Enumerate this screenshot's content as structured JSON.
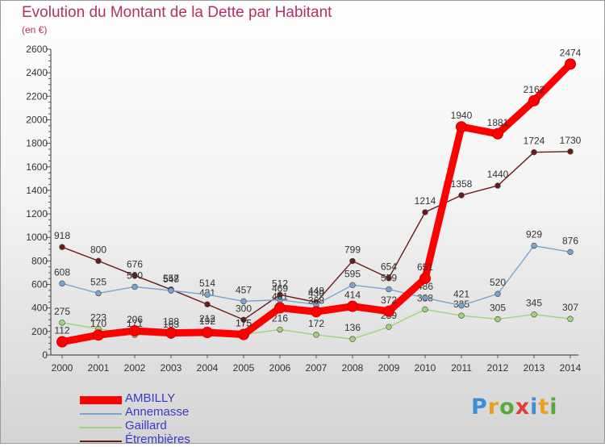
{
  "title": "Evolution du Montant de la Dette par Habitant",
  "subtitle": "(en €)",
  "logo": {
    "text": "Proxiti",
    "colors": [
      "#3b8fd9",
      "#e8a11c",
      "#5aa83c",
      "#d9423b",
      "#3b8fd9",
      "#e8a11c",
      "#5aa83c"
    ]
  },
  "chart_data": {
    "type": "line",
    "x": [
      "2000",
      "2001",
      "2002",
      "2003",
      "2004",
      "2005",
      "2006",
      "2007",
      "2008",
      "2009",
      "2010",
      "2011",
      "2012",
      "2013",
      "2014"
    ],
    "ylim": [
      0,
      2600
    ],
    "yticks": [
      "0",
      "200",
      "400",
      "600",
      "800",
      "1000",
      "1200",
      "1400",
      "1600",
      "1800",
      "2000",
      "2200",
      "2400",
      "2600"
    ],
    "grid": false,
    "legend_position": "bottom-left",
    "series": [
      {
        "name": "Étrembières",
        "color": "#6b1a1a",
        "values": [
          918,
          800,
          676,
          557,
          431,
          300,
          512,
          449,
          799,
          654,
          1214,
          1358,
          1440,
          1724,
          1730
        ],
        "labels": [
          "918",
          "800",
          "676",
          "557",
          "431",
          "300",
          "512",
          "449",
          "799",
          "654",
          "1214",
          "1358",
          "1440",
          "1724",
          "1730"
        ]
      },
      {
        "name": "Gaillard",
        "color": "#9ed47a",
        "values": [
          275,
          223,
          171,
          163,
          212,
          175,
          216,
          172,
          136,
          239,
          388,
          335,
          305,
          345,
          307
        ],
        "labels": [
          "275",
          "223",
          "171",
          "163",
          "212",
          "175",
          "216",
          "172",
          "136",
          "239",
          "388",
          "335",
          "305",
          "345",
          "307"
        ]
      },
      {
        "name": "Annemasse",
        "color": "#7aa3cf",
        "values": [
          608,
          525,
          580,
          548,
          514,
          457,
          469,
          430,
          595,
          559,
          486,
          421,
          520,
          929,
          876
        ],
        "labels": [
          "608",
          "525",
          "580",
          "548",
          "514",
          "457",
          "469",
          "430",
          "595",
          "559",
          "486",
          "421",
          "520",
          "929",
          "876"
        ]
      },
      {
        "name": "AMBILLY",
        "color": "#ff0000",
        "values": [
          112,
          170,
          206,
          188,
          192,
          175,
          401,
          368,
          414,
          372,
          651,
          1940,
          1881,
          2162,
          2474
        ],
        "labels": [
          "112",
          "170",
          "206",
          "188",
          "192",
          "175",
          "401",
          "368",
          "414",
          "372",
          "651",
          "1940",
          "1881",
          "2162",
          "2474"
        ]
      }
    ],
    "legend": [
      {
        "name": "AMBILLY",
        "color": "#ff0000"
      },
      {
        "name": "Annemasse",
        "color": "#7aa3cf"
      },
      {
        "name": "Gaillard",
        "color": "#9ed47a"
      },
      {
        "name": "Étrembières",
        "color": "#6b1a1a"
      }
    ]
  }
}
